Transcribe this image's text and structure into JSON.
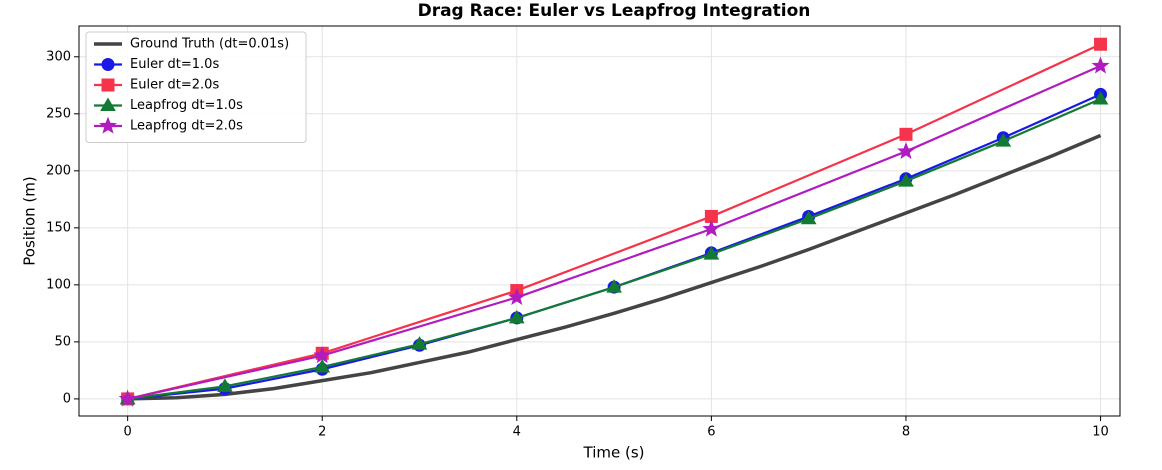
{
  "chart_data": {
    "type": "line",
    "title": "Drag Race: Euler vs Leapfrog Integration",
    "x_label": "Time (s)",
    "y_label": "Position (m)",
    "xlim": [
      -0.5,
      10.2
    ],
    "ylim": [
      -15,
      327
    ],
    "xticks": [
      0,
      2,
      4,
      6,
      8,
      10
    ],
    "yticks": [
      0,
      50,
      100,
      150,
      200,
      250,
      300
    ],
    "grid": true,
    "legend": "upper-left",
    "series": [
      {
        "name": "Ground Truth (dt=0.01s)",
        "color": "#444444",
        "marker": "none",
        "x": [
          0,
          0.5,
          1,
          1.5,
          2,
          2.5,
          3,
          3.5,
          4,
          4.5,
          5,
          5.5,
          6,
          6.5,
          7,
          7.5,
          8,
          8.5,
          9,
          9.5,
          10
        ],
        "values": [
          0,
          1,
          4,
          9,
          16,
          23,
          32,
          41,
          52,
          63,
          75,
          88,
          102,
          116,
          131,
          147,
          163,
          179,
          196,
          213,
          231
        ]
      },
      {
        "name": "Euler dt=1.0s",
        "color": "#1a1ae6",
        "marker": "circle",
        "x": [
          0,
          1,
          2,
          3,
          4,
          5,
          6,
          7,
          8,
          9,
          10
        ],
        "values": [
          0,
          9,
          26,
          47,
          71,
          98,
          128,
          160,
          193,
          229,
          267
        ]
      },
      {
        "name": "Euler dt=2.0s",
        "color": "#f5334a",
        "marker": "square",
        "x": [
          0,
          2,
          4,
          6,
          8,
          10
        ],
        "values": [
          0,
          40,
          95,
          160,
          232,
          311
        ]
      },
      {
        "name": "Leapfrog dt=1.0s",
        "color": "#137a33",
        "marker": "triangle",
        "x": [
          0,
          1,
          2,
          3,
          4,
          5,
          6,
          7,
          8,
          9,
          10
        ],
        "values": [
          0,
          11,
          28,
          48,
          71,
          98,
          127,
          158,
          191,
          226,
          263
        ]
      },
      {
        "name": "Leapfrog dt=2.0s",
        "color": "#b01cbf",
        "marker": "star",
        "x": [
          0,
          2,
          4,
          6,
          8,
          10
        ],
        "values": [
          0,
          38,
          89,
          149,
          217,
          292
        ]
      }
    ]
  }
}
